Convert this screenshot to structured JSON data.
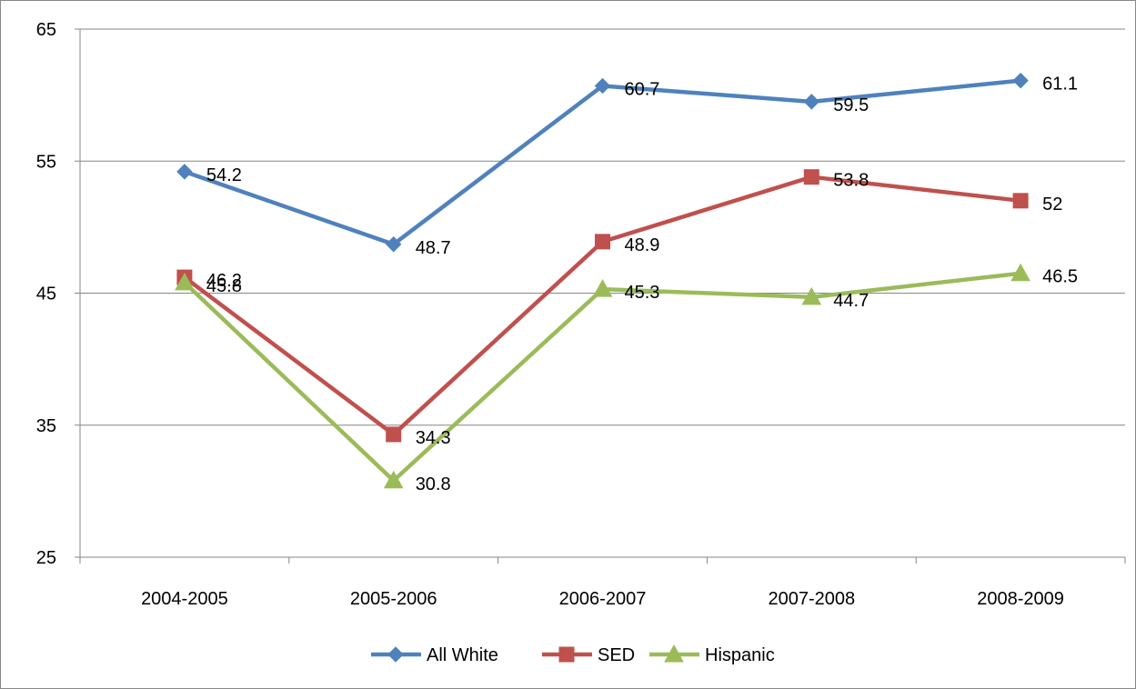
{
  "chart_data": {
    "type": "line",
    "title": "",
    "xlabel": "",
    "ylabel": "",
    "categories": [
      "2004-2005",
      "2005-2006",
      "2006-2007",
      "2007-2008",
      "2008-2009"
    ],
    "ylim": [
      25,
      65
    ],
    "yticks": [
      "25",
      "35",
      "45",
      "55",
      "65"
    ],
    "grid": true,
    "legend_position": "bottom",
    "series": [
      {
        "name": "All White",
        "values": [
          54.2,
          48.7,
          60.7,
          59.5,
          61.1
        ],
        "labels": [
          "54.2",
          "48.7",
          "60.7",
          "59.5",
          "61.1"
        ],
        "color": "#4F81BD",
        "marker": "diamond"
      },
      {
        "name": "SED",
        "values": [
          46.2,
          34.3,
          48.9,
          53.8,
          52
        ],
        "labels": [
          "46.2",
          "34.3",
          "48.9",
          "53.8",
          "52"
        ],
        "color": "#C0504D",
        "marker": "square"
      },
      {
        "name": "Hispanic",
        "values": [
          45.8,
          30.8,
          45.3,
          44.7,
          46.5
        ],
        "labels": [
          "45.8",
          "30.8",
          "45.3",
          "44.7",
          "46.5"
        ],
        "color": "#9BBB59",
        "marker": "triangle"
      }
    ]
  }
}
